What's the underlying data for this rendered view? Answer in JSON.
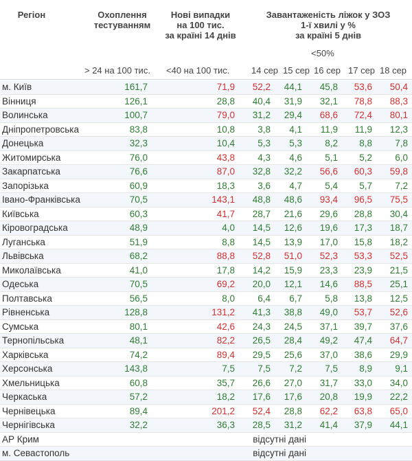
{
  "header": {
    "region": "Регіон",
    "testing": "Охоплення\nтестуванням",
    "new_cases": "Нові випадки\nна 100 тис.\nза країні 14 днів",
    "beds": "Завантаженість ліжок у ЗОЗ\n1-ї хвилі у %\nза країні 5 днів",
    "beds_threshold": "<50%",
    "testing_threshold": "> 24 на 100 тис.",
    "new_cases_threshold": "<40 на 100 тис.",
    "dates": [
      "14 сер",
      "15 сер",
      "16 сер",
      "17 сер",
      "18 сер"
    ]
  },
  "rows": [
    {
      "region": "м. Київ",
      "testing": "161,7",
      "new": "71,9",
      "d": [
        "52,2",
        "44,1",
        "45,8",
        "53,6",
        "50,4"
      ],
      "nc": "r",
      "dc": [
        "r",
        "g",
        "g",
        "r",
        "r"
      ]
    },
    {
      "region": "Вінниця",
      "testing": "126,1",
      "new": "28,8",
      "d": [
        "40,4",
        "31,9",
        "32,1",
        "78,8",
        "88,3"
      ],
      "nc": "g",
      "dc": [
        "g",
        "g",
        "g",
        "r",
        "r"
      ]
    },
    {
      "region": "Волинська",
      "testing": "100,7",
      "new": "79,0",
      "d": [
        "31,2",
        "29,4",
        "68,6",
        "72,4",
        "80,1"
      ],
      "nc": "r",
      "dc": [
        "g",
        "g",
        "r",
        "r",
        "r"
      ]
    },
    {
      "region": "Дніпропетровська",
      "testing": "83,8",
      "new": "10,8",
      "d": [
        "3,8",
        "4,1",
        "11,9",
        "11,9",
        "12,3"
      ],
      "nc": "g",
      "dc": [
        "g",
        "g",
        "g",
        "g",
        "g"
      ]
    },
    {
      "region": "Донецька",
      "testing": "32,3",
      "new": "10,4",
      "d": [
        "5,3",
        "5,3",
        "8,2",
        "8,8",
        "7,8"
      ],
      "nc": "g",
      "dc": [
        "g",
        "g",
        "g",
        "g",
        "g"
      ]
    },
    {
      "region": "Житомирська",
      "testing": "76,0",
      "new": "43,8",
      "d": [
        "4,3",
        "4,6",
        "5,1",
        "5,2",
        "6,0"
      ],
      "nc": "r",
      "dc": [
        "g",
        "g",
        "g",
        "g",
        "g"
      ]
    },
    {
      "region": "Закарпатська",
      "testing": "76,6",
      "new": "87,0",
      "d": [
        "32,8",
        "32,2",
        "56,6",
        "60,3",
        "59,8"
      ],
      "nc": "r",
      "dc": [
        "g",
        "g",
        "r",
        "r",
        "r"
      ]
    },
    {
      "region": "Запорізька",
      "testing": "60,9",
      "new": "18,3",
      "d": [
        "3,6",
        "4,7",
        "5,4",
        "5,7",
        "7,2"
      ],
      "nc": "g",
      "dc": [
        "g",
        "g",
        "g",
        "g",
        "g"
      ]
    },
    {
      "region": "Івано-Франківська",
      "testing": "70,5",
      "new": "143,1",
      "d": [
        "48,8",
        "48,6",
        "93,4",
        "96,5",
        "75,5"
      ],
      "nc": "r",
      "dc": [
        "g",
        "g",
        "r",
        "r",
        "r"
      ]
    },
    {
      "region": "Київська",
      "testing": "60,3",
      "new": "41,7",
      "d": [
        "28,7",
        "21,6",
        "29,6",
        "28,8",
        "30,4"
      ],
      "nc": "r",
      "dc": [
        "g",
        "g",
        "g",
        "g",
        "g"
      ]
    },
    {
      "region": "Кіровоградська",
      "testing": "48,9",
      "new": "4,0",
      "d": [
        "14,5",
        "12,6",
        "19,6",
        "17,3",
        "18,7"
      ],
      "nc": "g",
      "dc": [
        "g",
        "g",
        "g",
        "g",
        "g"
      ]
    },
    {
      "region": "Луганська",
      "testing": "51,9",
      "new": "8,8",
      "d": [
        "14,5",
        "13,9",
        "17,0",
        "15,8",
        "18,2"
      ],
      "nc": "g",
      "dc": [
        "g",
        "g",
        "g",
        "g",
        "g"
      ]
    },
    {
      "region": "Львівська",
      "testing": "68,2",
      "new": "88,8",
      "d": [
        "52,8",
        "51,0",
        "52,3",
        "53,3",
        "52,5"
      ],
      "nc": "r",
      "dc": [
        "r",
        "r",
        "r",
        "r",
        "r"
      ]
    },
    {
      "region": "Миколаївська",
      "testing": "41,0",
      "new": "17,8",
      "d": [
        "14,2",
        "15,9",
        "23,3",
        "23,9",
        "21,5"
      ],
      "nc": "g",
      "dc": [
        "g",
        "g",
        "g",
        "g",
        "g"
      ]
    },
    {
      "region": "Одеська",
      "testing": "70,5",
      "new": "69,2",
      "d": [
        "20,0",
        "12,1",
        "14,6",
        "88,5",
        "25,1"
      ],
      "nc": "r",
      "dc": [
        "g",
        "g",
        "g",
        "r",
        "g"
      ]
    },
    {
      "region": "Полтавська",
      "testing": "56,5",
      "new": "8,0",
      "d": [
        "6,4",
        "6,7",
        "5,8",
        "13,8",
        "12,5"
      ],
      "nc": "g",
      "dc": [
        "g",
        "g",
        "g",
        "g",
        "g"
      ]
    },
    {
      "region": "Рівненська",
      "testing": "128,8",
      "new": "131,2",
      "d": [
        "41,3",
        "38,8",
        "49,0",
        "53,7",
        "52,6"
      ],
      "nc": "r",
      "dc": [
        "g",
        "g",
        "g",
        "r",
        "r"
      ]
    },
    {
      "region": "Сумська",
      "testing": "80,1",
      "new": "42,6",
      "d": [
        "24,3",
        "24,5",
        "37,1",
        "39,7",
        "37,6"
      ],
      "nc": "r",
      "dc": [
        "g",
        "g",
        "g",
        "g",
        "g"
      ]
    },
    {
      "region": "Тернопільська",
      "testing": "48,1",
      "new": "82,2",
      "d": [
        "26,5",
        "28,4",
        "49,2",
        "47,4",
        "64,7"
      ],
      "nc": "r",
      "dc": [
        "g",
        "g",
        "g",
        "g",
        "r"
      ]
    },
    {
      "region": "Харківська",
      "testing": "74,2",
      "new": "89,4",
      "d": [
        "29,5",
        "25,6",
        "37,0",
        "38,6",
        "29,9"
      ],
      "nc": "r",
      "dc": [
        "g",
        "g",
        "g",
        "g",
        "g"
      ]
    },
    {
      "region": "Херсонська",
      "testing": "143,8",
      "new": "7,5",
      "d": [
        "7,5",
        "7,2",
        "7,5",
        "8,9",
        "9,1"
      ],
      "nc": "g",
      "dc": [
        "g",
        "g",
        "g",
        "g",
        "g"
      ]
    },
    {
      "region": "Хмельницька",
      "testing": "60,8",
      "new": "35,7",
      "d": [
        "26,6",
        "27,0",
        "31,7",
        "33,0",
        "34,0"
      ],
      "nc": "g",
      "dc": [
        "g",
        "g",
        "g",
        "g",
        "g"
      ]
    },
    {
      "region": "Черкаська",
      "testing": "57,2",
      "new": "18,2",
      "d": [
        "17,6",
        "17,6",
        "20,8",
        "19,9",
        "22,2"
      ],
      "nc": "g",
      "dc": [
        "g",
        "g",
        "g",
        "g",
        "g"
      ]
    },
    {
      "region": "Чернівецька",
      "testing": "89,4",
      "new": "201,2",
      "d": [
        "52,4",
        "28,8",
        "62,2",
        "63,8",
        "65,0"
      ],
      "nc": "r",
      "dc": [
        "r",
        "g",
        "r",
        "r",
        "r"
      ]
    },
    {
      "region": "Чернігівська",
      "testing": "32,2",
      "new": "36,3",
      "d": [
        "28,5",
        "31,2",
        "41,4",
        "37,9",
        "44,1"
      ],
      "nc": "g",
      "dc": [
        "g",
        "g",
        "g",
        "g",
        "g"
      ]
    }
  ],
  "no_data_rows": [
    {
      "region": "АР Крим",
      "text": "відсутні дані"
    },
    {
      "region": "м. Севастополь",
      "text": "відсутні дані"
    }
  ],
  "colors": {
    "good": "#2e7d32",
    "bad": "#d32f2f",
    "stripe": "#f3f7fb"
  }
}
